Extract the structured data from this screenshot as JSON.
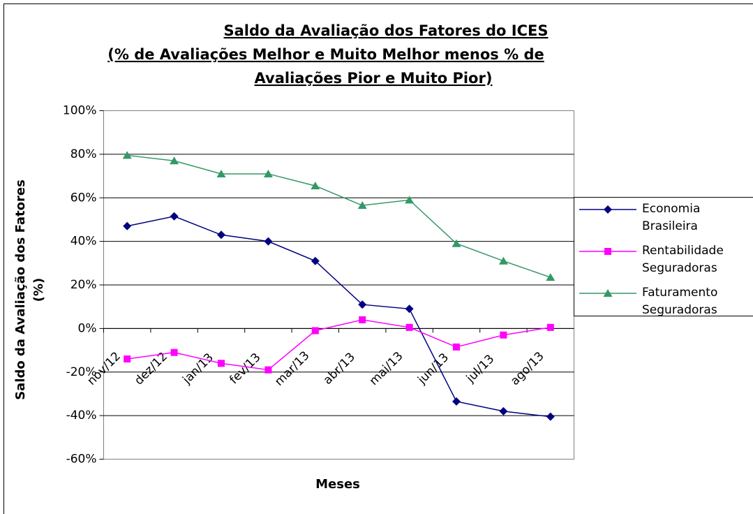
{
  "chart_data": {
    "type": "line",
    "title": [
      "Saldo da Avaliação dos Fatores do ICES",
      "(% de Avaliações Melhor e Muito Melhor menos % de",
      "Avaliações Pior e Muito Pior)"
    ],
    "x_label": "Meses",
    "y_label": [
      "Saldo da Avaliação dos Fatores",
      "(%)"
    ],
    "categories": [
      "nov/12",
      "dez/12",
      "jan/13",
      "fev/13",
      "mar/13",
      "abr/13",
      "mai/13",
      "jun/13",
      "jul/13",
      "ago/13"
    ],
    "series": [
      {
        "name": "Economia Brasileira",
        "color": "#000080",
        "marker": "diamond",
        "values": [
          47,
          51.5,
          43,
          40,
          31,
          11,
          9,
          -33.5,
          -38,
          -40.5
        ]
      },
      {
        "name": "Rentabilidade Seguradoras",
        "color": "#ff00ff",
        "marker": "square",
        "values": [
          -14,
          -11,
          -16,
          -19,
          -1,
          4,
          0.5,
          -8.5,
          -3,
          0.5
        ]
      },
      {
        "name": "Faturamento Seguradoras",
        "color": "#339966",
        "marker": "triangle",
        "values": [
          79.5,
          77,
          71,
          71,
          65.5,
          56.5,
          59,
          39,
          31,
          23.5
        ]
      }
    ],
    "ylim": [
      -60,
      100
    ],
    "yticks": [
      {
        "value": -60,
        "label": "-60%"
      },
      {
        "value": -40,
        "label": "-40%"
      },
      {
        "value": -20,
        "label": "-20%"
      },
      {
        "value": 0,
        "label": "0%"
      },
      {
        "value": 20,
        "label": "20%"
      },
      {
        "value": 40,
        "label": "40%"
      },
      {
        "value": 60,
        "label": "60%"
      },
      {
        "value": 80,
        "label": "80%"
      },
      {
        "value": 100,
        "label": "100%"
      }
    ],
    "grid": true,
    "legend": "right"
  }
}
